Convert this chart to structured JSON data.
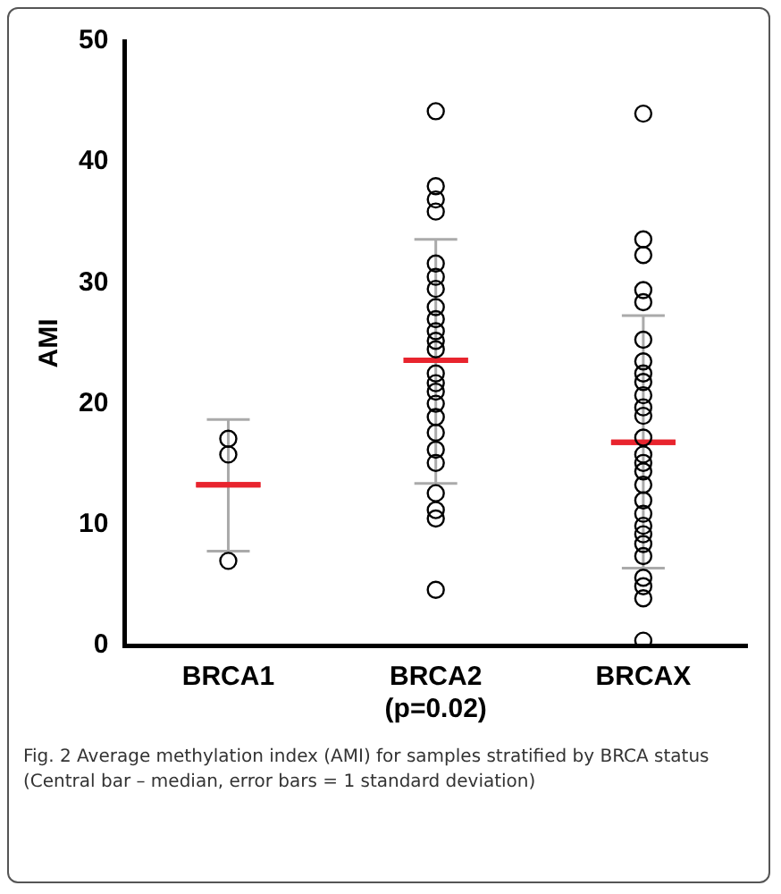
{
  "chart_data": {
    "type": "scatter",
    "ylabel": "AMI",
    "categories": [
      "BRCA1",
      "BRCA2 (p=0.02)",
      "BRCAX"
    ],
    "ylim": [
      0,
      50
    ],
    "yticks": [
      0,
      10,
      20,
      30,
      40,
      50
    ],
    "grid": false,
    "legend": false,
    "marker": "circle",
    "series": [
      {
        "type": "scatter",
        "color": "#000000",
        "x": [
          "BRCA1",
          "BRCA1",
          "BRCA1"
        ],
        "values": [
          17.1,
          15.8,
          7.0
        ]
      },
      {
        "type": "scatter",
        "color": "#000000",
        "x": [
          "BRCA2 (p=0.02)",
          "BRCA2 (p=0.02)",
          "BRCA2 (p=0.02)",
          "BRCA2 (p=0.02)",
          "BRCA2 (p=0.02)",
          "BRCA2 (p=0.02)",
          "BRCA2 (p=0.02)",
          "BRCA2 (p=0.02)",
          "BRCA2 (p=0.02)",
          "BRCA2 (p=0.02)",
          "BRCA2 (p=0.02)",
          "BRCA2 (p=0.02)",
          "BRCA2 (p=0.02)",
          "BRCA2 (p=0.02)",
          "BRCA2 (p=0.02)",
          "BRCA2 (p=0.02)",
          "BRCA2 (p=0.02)",
          "BRCA2 (p=0.02)",
          "BRCA2 (p=0.02)",
          "BRCA2 (p=0.02)",
          "BRCA2 (p=0.02)",
          "BRCA2 (p=0.02)",
          "BRCA2 (p=0.02)",
          "BRCA2 (p=0.02)"
        ],
        "values": [
          44.2,
          38.0,
          36.9,
          35.9,
          31.6,
          30.5,
          29.5,
          28.0,
          27.0,
          26.0,
          25.2,
          24.5,
          22.5,
          21.7,
          21.0,
          20.0,
          18.9,
          17.6,
          16.2,
          15.1,
          12.6,
          11.2,
          10.5,
          4.6
        ]
      },
      {
        "type": "scatter",
        "color": "#000000",
        "x": [
          "BRCAX",
          "BRCAX",
          "BRCAX",
          "BRCAX",
          "BRCAX",
          "BRCAX",
          "BRCAX",
          "BRCAX",
          "BRCAX",
          "BRCAX",
          "BRCAX",
          "BRCAX",
          "BRCAX",
          "BRCAX",
          "BRCAX",
          "BRCAX",
          "BRCAX",
          "BRCAX",
          "BRCAX",
          "BRCAX",
          "BRCAX",
          "BRCAX",
          "BRCAX",
          "BRCAX",
          "BRCAX",
          "BRCAX",
          "BRCAX"
        ],
        "values": [
          44.0,
          33.6,
          32.3,
          29.4,
          28.4,
          25.3,
          23.5,
          22.5,
          21.8,
          20.7,
          19.7,
          19.0,
          17.2,
          15.8,
          15.1,
          14.4,
          13.3,
          12.0,
          10.9,
          9.9,
          9.2,
          8.4,
          7.4,
          5.6,
          4.9,
          3.9,
          0.4
        ]
      },
      {
        "type": "box",
        "color": "#e8242e",
        "boxes": [
          {
            "low": 7.8,
            "q1": 13.3,
            "median": 13.3,
            "q3": 13.3,
            "high": 18.7
          },
          {
            "low": 13.4,
            "q1": 23.6,
            "median": 23.6,
            "q3": 23.6,
            "high": 33.6
          },
          {
            "low": 6.4,
            "q1": 16.8,
            "median": 16.8,
            "q3": 16.8,
            "high": 27.3
          }
        ]
      }
    ],
    "annotations": [
      "Fig. 2 Average methylation index (AMI) for samples stratified by BRCA status (Central bar – median, error bars = 1 standard deviation)"
    ]
  }
}
